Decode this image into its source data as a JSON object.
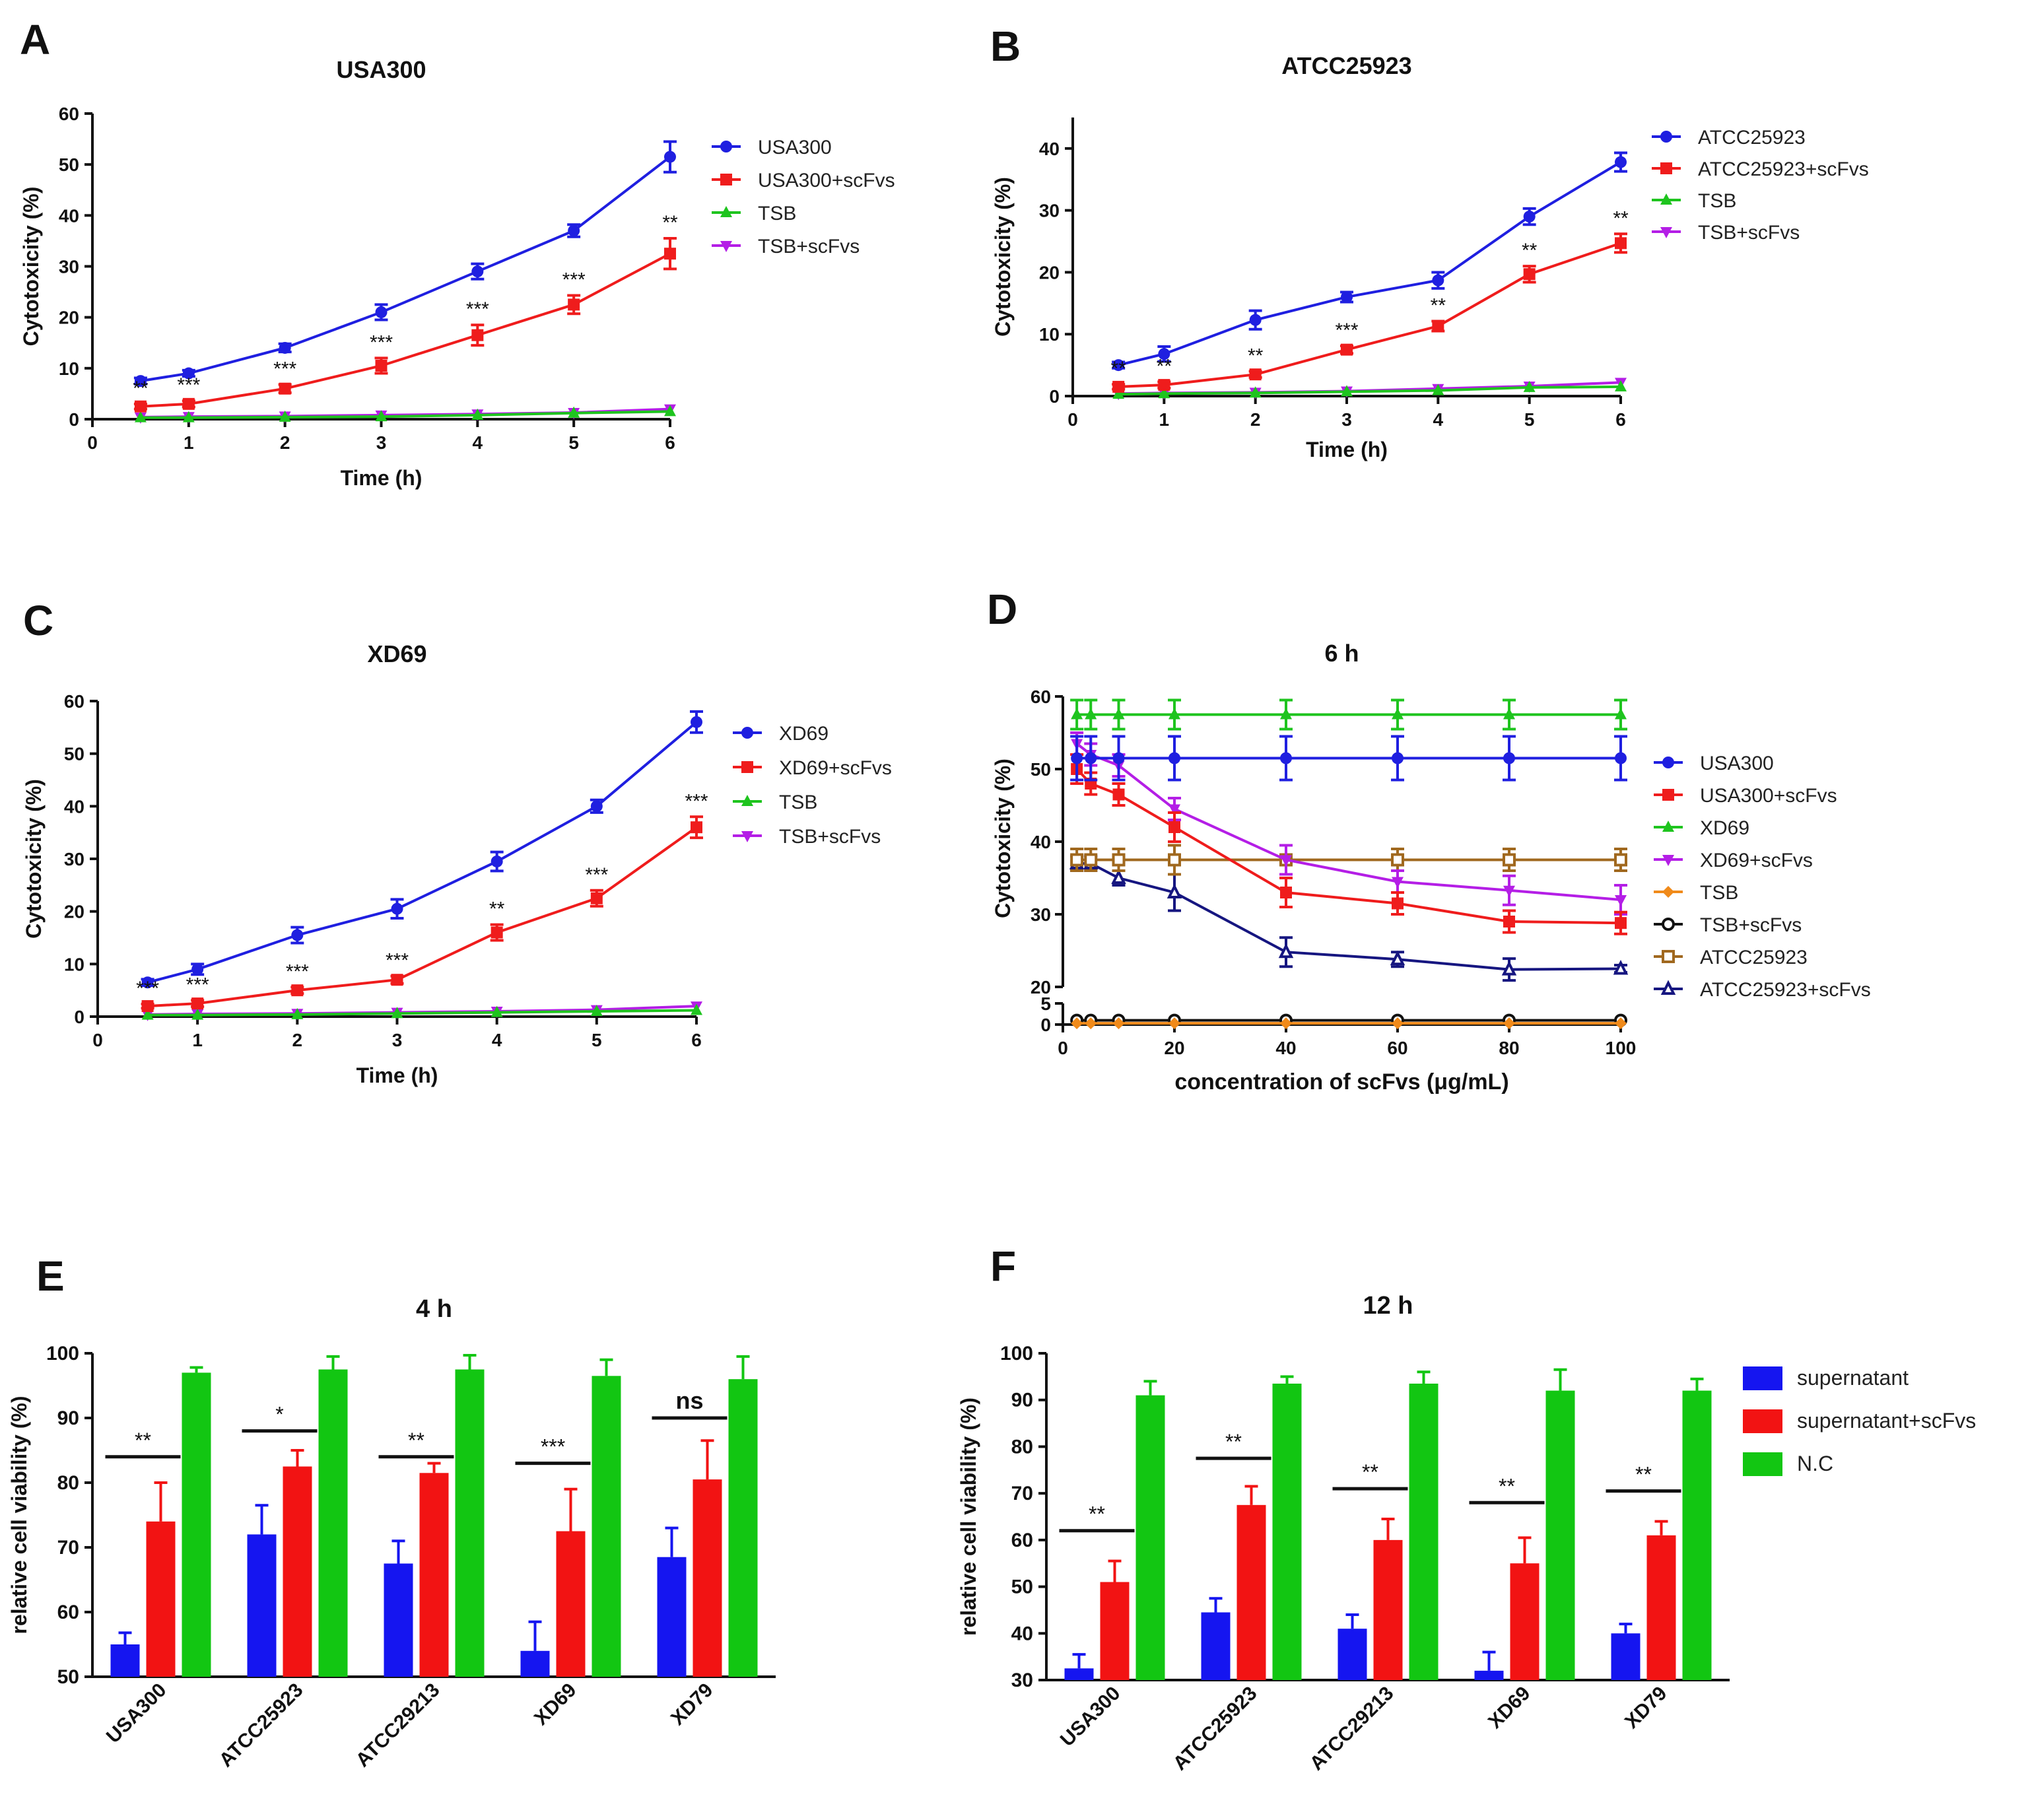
{
  "chart_data": [
    {
      "panel": "A",
      "type": "line",
      "title": "USA300",
      "xlabel": "Time (h)",
      "ylabel": "Cytotoxicity (%)",
      "xlim": [
        0,
        6
      ],
      "ylim": [
        0,
        60
      ],
      "xticks": [
        0,
        1,
        2,
        3,
        4,
        5,
        6
      ],
      "yticks": [
        0,
        10,
        20,
        30,
        40,
        50,
        60
      ],
      "x": [
        0.5,
        1,
        2,
        3,
        4,
        5,
        6
      ],
      "series": [
        {
          "name": "USA300",
          "color": "#1f1fe0",
          "marker": "circle",
          "values": [
            7.5,
            9,
            14,
            21,
            29,
            37,
            51.5
          ],
          "errors": [
            0.6,
            0.6,
            0.8,
            1.5,
            1.5,
            1.2,
            3
          ]
        },
        {
          "name": "USA300+scFvs",
          "color": "#ef1c1c",
          "marker": "square",
          "values": [
            2.5,
            3,
            6,
            10.5,
            16.5,
            22.5,
            32.5
          ],
          "errors": [
            0.5,
            0.6,
            0.8,
            1.5,
            2,
            1.8,
            3
          ]
        },
        {
          "name": "TSB",
          "color": "#1ec41e",
          "marker": "triangle-up",
          "values": [
            0.3,
            0.3,
            0.4,
            0.5,
            0.8,
            1.2,
            1.5
          ],
          "errors": [
            0,
            0,
            0,
            0,
            0,
            0,
            0
          ]
        },
        {
          "name": "TSB+scFvs",
          "color": "#b41ee6",
          "marker": "triangle-down",
          "values": [
            0.4,
            0.5,
            0.6,
            0.8,
            1,
            1.3,
            2
          ],
          "errors": [
            0,
            0,
            0,
            0,
            0,
            0,
            0
          ]
        }
      ],
      "annotations": [
        {
          "x": 0.5,
          "y": 2.5,
          "text": "**"
        },
        {
          "x": 1,
          "y": 3,
          "text": "***"
        },
        {
          "x": 2,
          "y": 6,
          "text": "***"
        },
        {
          "x": 3,
          "y": 10.5,
          "text": "***"
        },
        {
          "x": 4,
          "y": 16.5,
          "text": "***"
        },
        {
          "x": 5,
          "y": 22.5,
          "text": "***"
        },
        {
          "x": 6,
          "y": 32.5,
          "text": "**"
        }
      ]
    },
    {
      "panel": "B",
      "type": "line",
      "title": "ATCC25923",
      "xlabel": "Time (h)",
      "ylabel": "Cytotoxicity (%)",
      "xlim": [
        0,
        6
      ],
      "ylim": [
        0,
        45
      ],
      "xticks": [
        0,
        1,
        2,
        3,
        4,
        5,
        6
      ],
      "yticks": [
        0,
        10,
        20,
        30,
        40
      ],
      "x": [
        0.5,
        1,
        2,
        3,
        4,
        5,
        6
      ],
      "series": [
        {
          "name": "ATCC25923",
          "color": "#1f1fe0",
          "marker": "circle",
          "values": [
            5,
            6.8,
            12.3,
            16,
            18.7,
            29,
            37.8
          ],
          "errors": [
            0.5,
            1.2,
            1.5,
            0.8,
            1.3,
            1.3,
            1.5
          ]
        },
        {
          "name": "ATCC25923+scFvs",
          "color": "#ef1c1c",
          "marker": "square",
          "values": [
            1.5,
            1.8,
            3.5,
            7.5,
            11.3,
            19.7,
            24.7
          ],
          "errors": [
            0.4,
            0.5,
            0.5,
            0.6,
            0.8,
            1.3,
            1.5
          ]
        },
        {
          "name": "TSB",
          "color": "#1ec41e",
          "marker": "triangle-up",
          "values": [
            0.3,
            0.4,
            0.5,
            0.7,
            0.9,
            1.4,
            1.5
          ],
          "errors": [
            0,
            0,
            0,
            0,
            0,
            0,
            0
          ]
        },
        {
          "name": "TSB+scFvs",
          "color": "#b41ee6",
          "marker": "triangle-down",
          "values": [
            0.4,
            0.5,
            0.6,
            0.8,
            1.2,
            1.6,
            2.2
          ],
          "errors": [
            0,
            0,
            0,
            0,
            0,
            0,
            0
          ]
        }
      ],
      "annotations": [
        {
          "x": 0.5,
          "y": 1.5,
          "text": "**"
        },
        {
          "x": 1,
          "y": 1.8,
          "text": "**"
        },
        {
          "x": 2,
          "y": 3.5,
          "text": "**"
        },
        {
          "x": 3,
          "y": 7.5,
          "text": "***"
        },
        {
          "x": 4,
          "y": 11.3,
          "text": "**"
        },
        {
          "x": 5,
          "y": 19.7,
          "text": "**"
        },
        {
          "x": 6,
          "y": 24.7,
          "text": "**"
        }
      ]
    },
    {
      "panel": "C",
      "type": "line",
      "title": "XD69",
      "xlabel": "Time (h)",
      "ylabel": "Cytotoxicity (%)",
      "xlim": [
        0,
        6
      ],
      "ylim": [
        0,
        60
      ],
      "xticks": [
        0,
        1,
        2,
        3,
        4,
        5,
        6
      ],
      "yticks": [
        0,
        10,
        20,
        30,
        40,
        50,
        60
      ],
      "x": [
        0.5,
        1,
        2,
        3,
        4,
        5,
        6
      ],
      "series": [
        {
          "name": "XD69",
          "color": "#1f1fe0",
          "marker": "circle",
          "values": [
            6.5,
            9,
            15.5,
            20.5,
            29.5,
            40,
            56
          ],
          "errors": [
            0.6,
            1,
            1.5,
            1.8,
            1.8,
            1.2,
            2
          ]
        },
        {
          "name": "XD69+scFvs",
          "color": "#ef1c1c",
          "marker": "square",
          "values": [
            2,
            2.5,
            5,
            7,
            16,
            22.5,
            36
          ],
          "errors": [
            0.4,
            0.6,
            0.6,
            0.7,
            1.5,
            1.5,
            2
          ]
        },
        {
          "name": "TSB",
          "color": "#1ec41e",
          "marker": "triangle-up",
          "values": [
            0.3,
            0.3,
            0.4,
            0.6,
            0.8,
            1,
            1.2
          ],
          "errors": [
            0,
            0,
            0,
            0,
            0,
            0,
            0
          ]
        },
        {
          "name": "TSB+scFvs",
          "color": "#b41ee6",
          "marker": "triangle-down",
          "values": [
            0.4,
            0.5,
            0.6,
            0.8,
            1,
            1.3,
            2
          ],
          "errors": [
            0,
            0,
            0,
            0,
            0,
            0,
            0
          ]
        }
      ],
      "annotations": [
        {
          "x": 0.5,
          "y": 2,
          "text": "***"
        },
        {
          "x": 1,
          "y": 2.5,
          "text": "***"
        },
        {
          "x": 2,
          "y": 5,
          "text": "***"
        },
        {
          "x": 3,
          "y": 7,
          "text": "***"
        },
        {
          "x": 4,
          "y": 16,
          "text": "**"
        },
        {
          "x": 5,
          "y": 22.5,
          "text": "***"
        },
        {
          "x": 6,
          "y": 36,
          "text": "***"
        }
      ]
    },
    {
      "panel": "D",
      "type": "line",
      "title": "6 h",
      "xlabel": "concentration of scFvs (μg/mL)",
      "ylabel": "Cytotoxicity (%)",
      "xlim": [
        0,
        100
      ],
      "ylim": [
        0,
        60
      ],
      "axis_break": [
        5,
        20
      ],
      "xticks": [
        0,
        20,
        40,
        60,
        80,
        100
      ],
      "yticks": [
        0,
        5,
        20,
        30,
        40,
        50,
        60
      ],
      "x": [
        2.5,
        5,
        10,
        20,
        40,
        60,
        80,
        100
      ],
      "series": [
        {
          "name": "USA300",
          "color": "#1f1fe0",
          "marker": "circle",
          "values": [
            51.5,
            51.5,
            51.5,
            51.5,
            51.5,
            51.5,
            51.5,
            51.5
          ],
          "errors": [
            3,
            3,
            3,
            3,
            3,
            3,
            3,
            3
          ]
        },
        {
          "name": "USA300+scFvs",
          "color": "#ef1c1c",
          "marker": "square",
          "values": [
            50,
            48,
            46.5,
            42,
            33,
            31.5,
            29,
            28.8
          ],
          "errors": [
            2,
            1.5,
            1.5,
            2,
            2,
            1.5,
            1.5,
            1.5
          ]
        },
        {
          "name": "XD69",
          "color": "#1ec41e",
          "marker": "triangle-up",
          "values": [
            57.5,
            57.5,
            57.5,
            57.5,
            57.5,
            57.5,
            57.5,
            57.5
          ],
          "errors": [
            2,
            2,
            2,
            2,
            2,
            2,
            2,
            2
          ]
        },
        {
          "name": "XD69+scFvs",
          "color": "#b41ee6",
          "marker": "triangle-down",
          "values": [
            53.5,
            52,
            50.5,
            44.5,
            37.5,
            34.5,
            33.3,
            32
          ],
          "errors": [
            1.5,
            1.5,
            1.5,
            1.5,
            2,
            1.5,
            2,
            2
          ]
        },
        {
          "name": "TSB",
          "color": "#f08a1a",
          "marker": "diamond",
          "values": [
            0.3,
            0.3,
            0.3,
            0.3,
            0.3,
            0.3,
            0.3,
            0.3
          ],
          "errors": [
            0,
            0,
            0,
            0,
            0,
            0,
            0,
            0
          ]
        },
        {
          "name": "TSB+scFvs",
          "color": "#111111",
          "marker": "open-circle",
          "values": [
            1,
            1,
            1,
            1,
            1,
            1,
            1,
            1
          ],
          "errors": [
            0,
            0,
            0,
            0,
            0,
            0,
            0,
            0
          ]
        },
        {
          "name": "ATCC25923",
          "color": "#a0681e",
          "marker": "open-square",
          "values": [
            37.5,
            37.5,
            37.5,
            37.5,
            37.5,
            37.5,
            37.5,
            37.5
          ],
          "errors": [
            1.5,
            1.5,
            1.5,
            2,
            2,
            1.5,
            1.5,
            1.5
          ]
        },
        {
          "name": "ATCC25923+scFvs",
          "color": "#161680",
          "marker": "open-triangle",
          "values": [
            37,
            37,
            35,
            33,
            24.8,
            23.8,
            22.4,
            22.5
          ],
          "errors": [
            1,
            1,
            1,
            2.5,
            2,
            1,
            1.5,
            0.5
          ]
        }
      ],
      "annotations": []
    },
    {
      "panel": "E",
      "type": "bar",
      "title": "4 h",
      "xlabel": "",
      "ylabel": "relative cell viability (%)",
      "ylim": [
        50,
        100
      ],
      "yticks": [
        50,
        60,
        70,
        80,
        90,
        100
      ],
      "categories": [
        "USA300",
        "ATCC25923",
        "ATCC29213",
        "XD69",
        "XD79"
      ],
      "series": [
        {
          "name": "supernatant",
          "color": "#1515f0",
          "values": [
            55,
            72,
            67.5,
            54,
            68.5
          ],
          "errors": [
            1.8,
            4.5,
            3.5,
            4.5,
            4.5
          ]
        },
        {
          "name": "supernatant+scFvs",
          "color": "#f21313",
          "values": [
            74,
            82.5,
            81.5,
            72.5,
            80.5
          ],
          "errors": [
            6,
            2.5,
            1.5,
            6.5,
            6
          ]
        },
        {
          "name": "N.C",
          "color": "#12c612",
          "values": [
            97,
            97.5,
            97.5,
            96.5,
            96
          ],
          "errors": [
            0.8,
            2,
            2.2,
            2.5,
            3.5
          ]
        }
      ],
      "significance": [
        {
          "category": "USA300",
          "text": "**",
          "y": 84
        },
        {
          "category": "ATCC25923",
          "text": "*",
          "y": 88
        },
        {
          "category": "ATCC29213",
          "text": "**",
          "y": 84
        },
        {
          "category": "XD69",
          "text": "***",
          "y": 83
        },
        {
          "category": "XD79",
          "text": "ns",
          "y": 90
        }
      ]
    },
    {
      "panel": "F",
      "type": "bar",
      "title": "12 h",
      "xlabel": "",
      "ylabel": "relative cell viability (%)",
      "ylim": [
        30,
        100
      ],
      "yticks": [
        30,
        40,
        50,
        60,
        70,
        80,
        90,
        100
      ],
      "categories": [
        "USA300",
        "ATCC25923",
        "ATCC29213",
        "XD69",
        "XD79"
      ],
      "series": [
        {
          "name": "supernatant",
          "color": "#1515f0",
          "values": [
            32.5,
            44.5,
            41,
            32,
            40
          ],
          "errors": [
            3,
            3,
            3,
            4,
            2
          ]
        },
        {
          "name": "supernatant+scFvs",
          "color": "#f21313",
          "values": [
            51,
            67.5,
            60,
            55,
            61
          ],
          "errors": [
            4.5,
            4,
            4.5,
            5.5,
            3
          ]
        },
        {
          "name": "N.C",
          "color": "#12c612",
          "values": [
            91,
            93.5,
            93.5,
            92,
            92
          ],
          "errors": [
            3,
            1.5,
            2.5,
            4.5,
            2.5
          ]
        }
      ],
      "significance": [
        {
          "category": "USA300",
          "text": "**",
          "y": 62
        },
        {
          "category": "ATCC25923",
          "text": "**",
          "y": 77.5
        },
        {
          "category": "ATCC29213",
          "text": "**",
          "y": 71
        },
        {
          "category": "XD69",
          "text": "**",
          "y": 68
        },
        {
          "category": "XD79",
          "text": "**",
          "y": 70.5
        }
      ]
    }
  ]
}
